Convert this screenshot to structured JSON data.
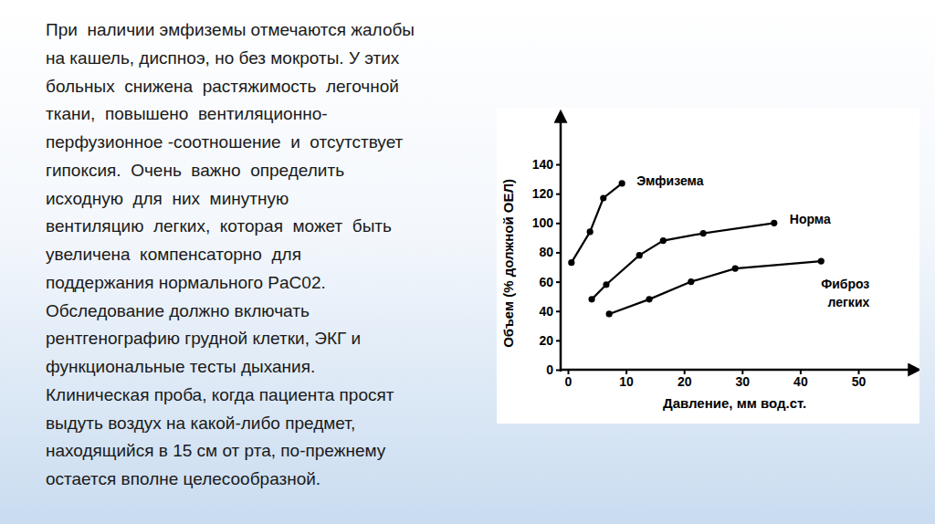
{
  "slide": {
    "lines": [
      "При  наличии эмфиземы отмечаются жалобы",
      "на кашель, диспноэ, но без мокроты. У этих",
      "больных  снижена  растяжимость  легочной",
      "ткани,  повышено  вентиляционно-",
      "перфузионное -соотношение  и  отсутствует",
      "гипоксия.  Очень  важно  определить",
      "исходную  для  них  минутную",
      "вентиляцию  легких,  которая  может  быть",
      "увеличена  компенсаторно  для",
      "поддержания нормального PaC02.",
      "Обследование должно включать",
      "рентгенографию грудной клетки, ЭКГ и",
      "функциональные тесты дыхания.",
      "Клиническая проба, когда пациента просят",
      "выдуть воздух на какой-либо предмет,",
      "находящийся в 15 см от рта, по-прежнему",
      "остается вполне целесообразной."
    ]
  },
  "chart_data": {
    "type": "line",
    "x_label": "Давление, мм вод.ст.",
    "y_label": "Объем (% должной ОЕЛ)",
    "xlim": [
      0,
      59
    ],
    "xticks": [
      0,
      10,
      20,
      30,
      40,
      50
    ],
    "ylim": [
      0,
      170
    ],
    "yticks": [
      0,
      20,
      40,
      60,
      80,
      100,
      120,
      140
    ],
    "grid": false,
    "series": [
      {
        "name": "Эмфизема",
        "color": "#000000",
        "marker": "circle",
        "line_style": "solid",
        "x": [
          0.6,
          3.8,
          6.1,
          9.3
        ],
        "values": [
          73,
          94,
          117,
          127
        ]
      },
      {
        "name": "Норма",
        "color": "#000000",
        "marker": "circle",
        "line_style": "solid",
        "x": [
          4.1,
          6.6,
          12.3,
          16.4,
          23.3,
          35.5
        ],
        "values": [
          48,
          58,
          78,
          88,
          93,
          100
        ]
      },
      {
        "name": "Фиброз легких",
        "color": "#000000",
        "marker": "circle",
        "line_style": "solid",
        "x": [
          7.1,
          14,
          21.2,
          28.8,
          43.6
        ],
        "values": [
          38,
          48,
          60,
          69,
          74
        ]
      }
    ]
  }
}
